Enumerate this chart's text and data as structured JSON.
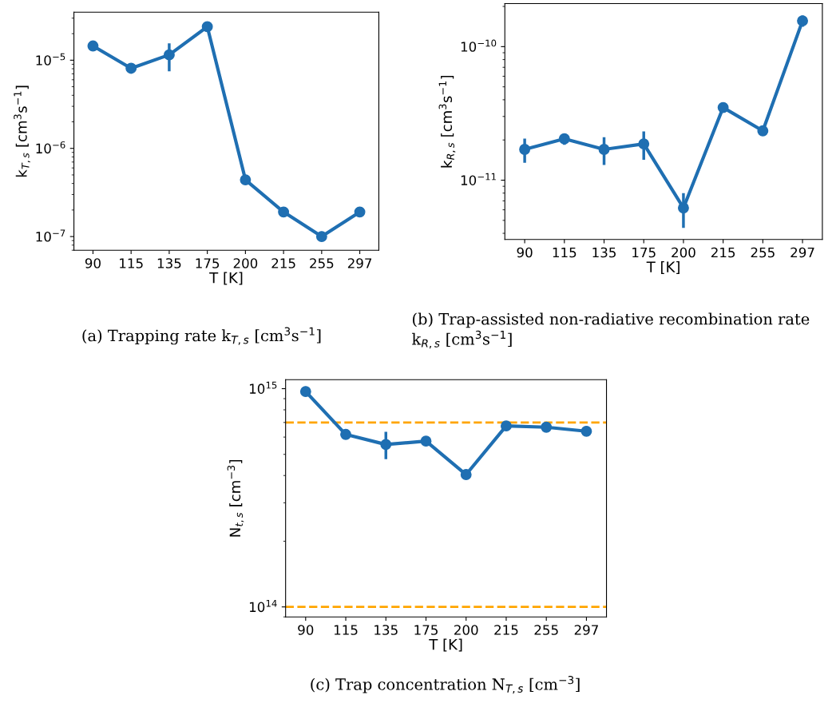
{
  "chart_data": [
    {
      "type": "line",
      "xlabel": "T [K]",
      "ylabel": "k$_{T,s}$ [cm$^{3}$s$^{−1}$]",
      "log": "y",
      "marker": "circle",
      "line_style": "solid",
      "categories": [
        "90",
        "115",
        "135",
        "175",
        "200",
        "215",
        "255",
        "297"
      ],
      "series": [
        {
          "color": "#1f6fb2",
          "values": [
            1.45e-05,
            8.1e-06,
            1.15e-05,
            2.4e-05,
            4.4e-07,
            1.9e-07,
            1e-07,
            1.9e-07
          ],
          "errors": [
            null,
            null,
            4e-06,
            null,
            null,
            null,
            null,
            null
          ]
        }
      ],
      "ylim": [
        7e-08,
        3.5e-05
      ],
      "yticks": [
        {
          "value": 1e-07,
          "label": "10$^{−7}$"
        },
        {
          "value": 1e-06,
          "label": "10$^{−6}$"
        },
        {
          "value": 1e-05,
          "label": "10$^{−5}$"
        }
      ],
      "annotations": [
        "(a) Trapping rate k$_{T,s}$ [cm$^{3}$s$^{−1}$]"
      ]
    },
    {
      "type": "line",
      "xlabel": "T [K]",
      "ylabel": "k$_{R,s}$ [cm$^{3}$s$^{−1}$]",
      "log": "y",
      "marker": "circle",
      "line_style": "solid",
      "categories": [
        "90",
        "115",
        "135",
        "175",
        "200",
        "215",
        "255",
        "297"
      ],
      "series": [
        {
          "color": "#1f6fb2",
          "values": [
            1.7e-11,
            2.04e-11,
            1.7e-11,
            1.87e-11,
            6.2e-12,
            3.5e-11,
            2.34e-11,
            1.56e-10
          ],
          "errors": [
            3.5e-12,
            2e-12,
            4e-12,
            4.5e-12,
            1.8e-12,
            null,
            null,
            1.5e-11
          ]
        }
      ],
      "ylim": [
        3.6e-12,
        2.1e-10
      ],
      "yticks": [
        {
          "value": 1e-11,
          "label": "10$^{−11}$"
        },
        {
          "value": 1e-10,
          "label": "10$^{−10}$"
        }
      ],
      "annotations": [
        "(b) Trap-assisted non-radiative recombination rate k$_{R,s}$ [cm$^{3}$s$^{−1}$]"
      ]
    },
    {
      "type": "line",
      "xlabel": "T [K]",
      "ylabel": "N$_{t,s}$ [cm$^{−3}$]",
      "log": "y",
      "marker": "circle",
      "line_style": "solid",
      "categories": [
        "90",
        "115",
        "135",
        "175",
        "200",
        "215",
        "255",
        "297"
      ],
      "series": [
        {
          "color": "#1f6fb2",
          "values": [
            970000000000000.0,
            617000000000000.0,
            555000000000000.0,
            575000000000000.0,
            404000000000000.0,
            675000000000000.0,
            666000000000000.0,
            638000000000000.0
          ],
          "errors": [
            null,
            null,
            80000000000000.0,
            null,
            null,
            null,
            null,
            null
          ]
        }
      ],
      "ylim": [
        90000000000000.0,
        1100000000000000.0
      ],
      "yticks": [
        {
          "value": 100000000000000.0,
          "label": "10$^{14}$"
        },
        {
          "value": 1000000000000000.0,
          "label": "10$^{15}$"
        }
      ],
      "ref_lines": [
        {
          "axis": "y",
          "value": 700000000000000.0,
          "color": "#ffa500",
          "line_style": "dashed"
        },
        {
          "axis": "y",
          "value": 100000000000000.0,
          "color": "#ffa500",
          "line_style": "dashed"
        }
      ],
      "annotations": [
        "(c) Trap concentration N$_{T,s}$ [cm$^{−3}$]"
      ]
    }
  ]
}
